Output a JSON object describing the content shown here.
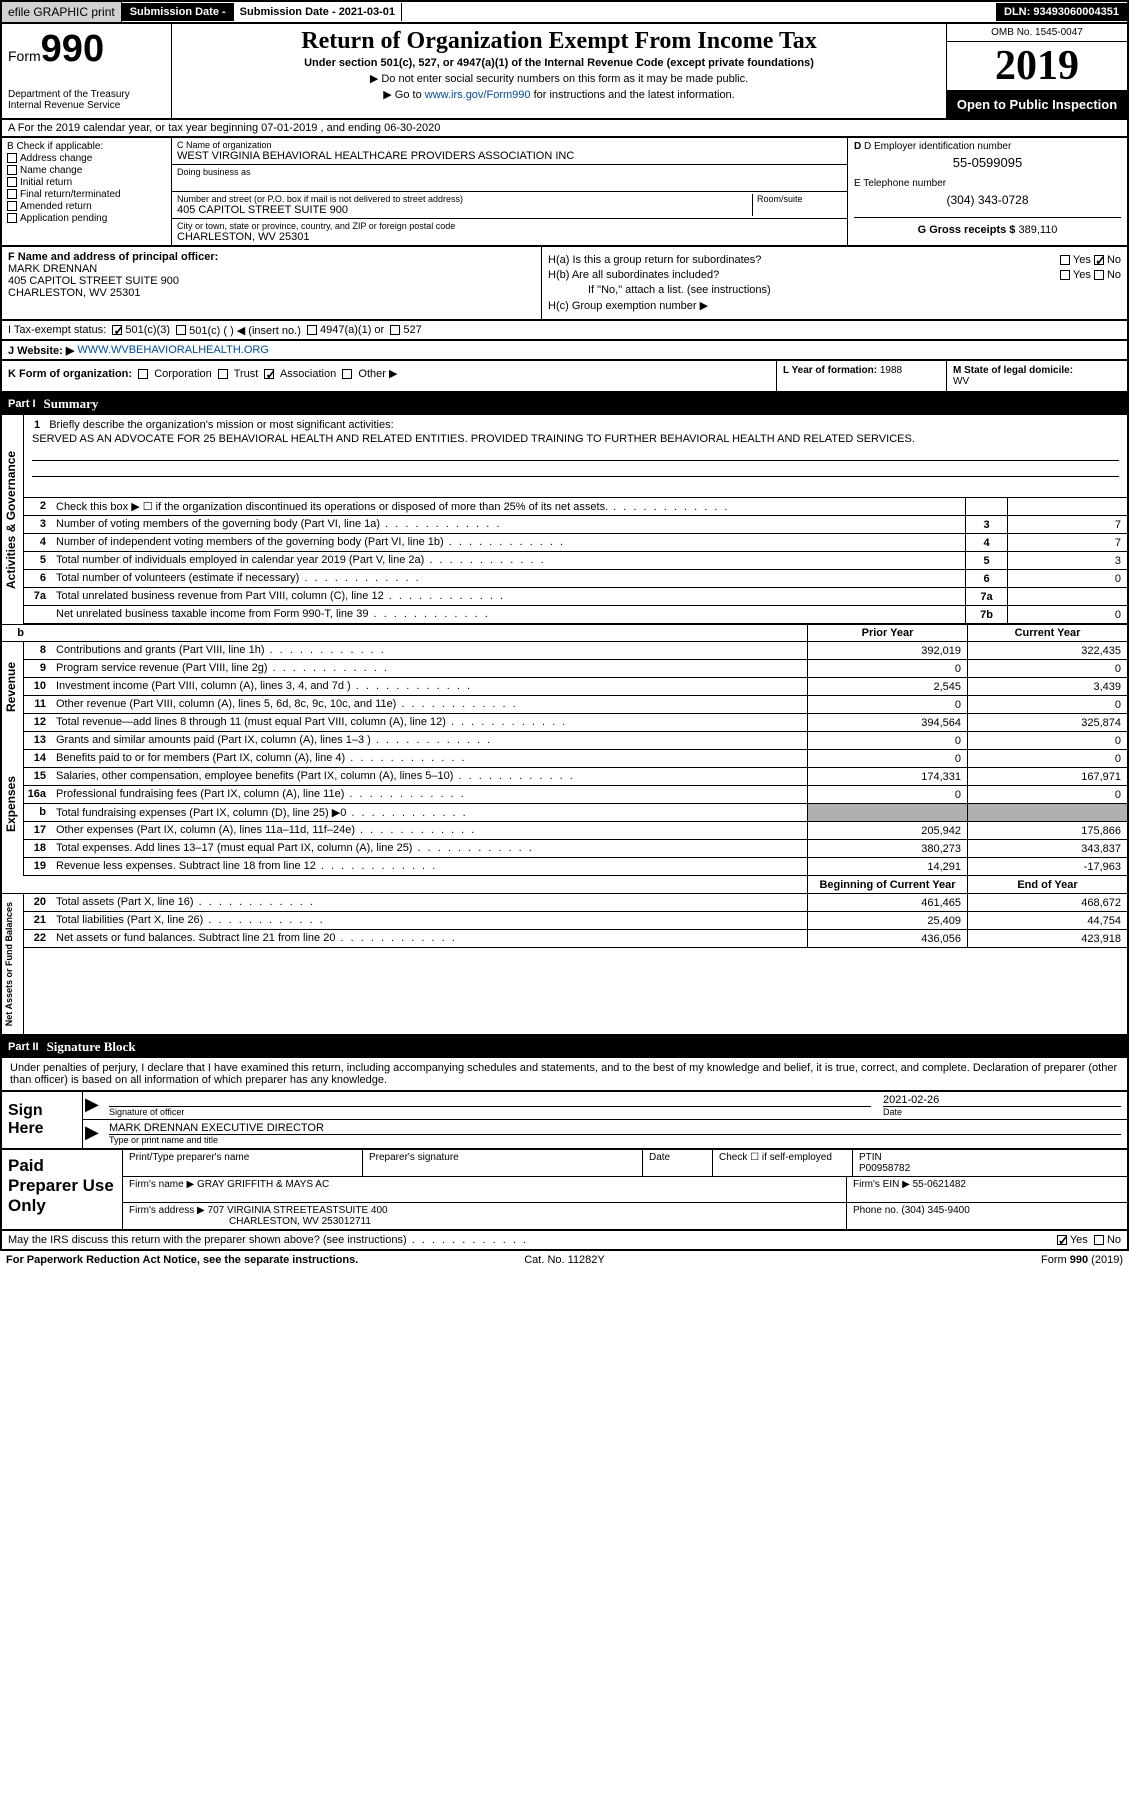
{
  "top_bar": {
    "efile": "efile GRAPHIC print",
    "sub_date_label": "Submission Date - 2021-03-01",
    "dln": "DLN: 93493060004351"
  },
  "header": {
    "form_word": "Form",
    "form_num": "990",
    "dept": "Department of the Treasury\nInternal Revenue Service",
    "title": "Return of Organization Exempt From Income Tax",
    "subtitle": "Under section 501(c), 527, or 4947(a)(1) of the Internal Revenue Code (except private foundations)",
    "instr1": "Do not enter social security numbers on this form as it may be made public.",
    "instr2_pre": "Go to ",
    "instr2_link": "www.irs.gov/Form990",
    "instr2_post": " for instructions and the latest information.",
    "omb": "OMB No. 1545-0047",
    "year": "2019",
    "open": "Open to Public Inspection"
  },
  "line_a": "A For the 2019 calendar year, or tax year beginning 07-01-2019    , and ending 06-30-2020",
  "check_b": {
    "label": "B Check if applicable:",
    "items": [
      "Address change",
      "Name change",
      "Initial return",
      "Final return/terminated",
      "Amended return",
      "Application pending"
    ]
  },
  "block_c": {
    "name_label": "C Name of organization",
    "name": "WEST VIRGINIA BEHAVIORAL HEALTHCARE PROVIDERS ASSOCIATION INC",
    "dba_label": "Doing business as",
    "dba": "",
    "addr_label": "Number and street (or P.O. box if mail is not delivered to street address)",
    "room_label": "Room/suite",
    "addr": "405 CAPITOL STREET SUITE 900",
    "city_label": "City or town, state or province, country, and ZIP or foreign postal code",
    "city": "CHARLESTON, WV  25301"
  },
  "block_d": {
    "label": "D Employer identification number",
    "value": "55-0599095"
  },
  "block_e": {
    "label": "E Telephone number",
    "value": "(304) 343-0728"
  },
  "block_g": {
    "label": "G Gross receipts $",
    "value": "389,110"
  },
  "block_f": {
    "label": "F  Name and address of principal officer:",
    "name": "MARK DRENNAN",
    "addr1": "405 CAPITOL STREET SUITE 900",
    "addr2": "CHARLESTON, WV  25301"
  },
  "block_h": {
    "ha": "H(a)  Is this a group return for subordinates?",
    "hb": "H(b)  Are all subordinates included?",
    "hb_note": "If \"No,\" attach a list. (see instructions)",
    "hc": "H(c)  Group exemption number ▶",
    "yes": "Yes",
    "no": "No"
  },
  "tax_status": {
    "label": "I    Tax-exempt status:",
    "opts": [
      "501(c)(3)",
      "501(c) (   ) ◀ (insert no.)",
      "4947(a)(1) or",
      "527"
    ]
  },
  "website": {
    "label": "J    Website: ▶",
    "value": "WWW.WVBEHAVIORALHEALTH.ORG"
  },
  "block_k": {
    "label": "K Form of organization:",
    "opts": [
      "Corporation",
      "Trust",
      "Association",
      "Other ▶"
    ]
  },
  "block_l": {
    "label": "L Year of formation:",
    "value": "1988"
  },
  "block_m": {
    "label": "M State of legal domicile:",
    "value": "WV"
  },
  "part1": {
    "num": "Part I",
    "title": "Summary"
  },
  "mission": {
    "num": "1",
    "label": "Briefly describe the organization's mission or most significant activities:",
    "text": "SERVED AS AN ADVOCATE FOR 25 BEHAVIORAL HEALTH AND RELATED ENTITIES. PROVIDED TRAINING TO FURTHER BEHAVIORAL HEALTH AND RELATED SERVICES."
  },
  "vtabs": {
    "gov": "Activities & Governance",
    "rev": "Revenue",
    "exp": "Expenses",
    "net": "Net Assets or Fund Balances"
  },
  "gov_rows": [
    {
      "n": "2",
      "t": "Check this box ▶ ☐  if the organization discontinued its operations or disposed of more than 25% of its net assets.",
      "box": "",
      "v": ""
    },
    {
      "n": "3",
      "t": "Number of voting members of the governing body (Part VI, line 1a)",
      "box": "3",
      "v": "7"
    },
    {
      "n": "4",
      "t": "Number of independent voting members of the governing body (Part VI, line 1b)",
      "box": "4",
      "v": "7"
    },
    {
      "n": "5",
      "t": "Total number of individuals employed in calendar year 2019 (Part V, line 2a)",
      "box": "5",
      "v": "3"
    },
    {
      "n": "6",
      "t": "Total number of volunteers (estimate if necessary)",
      "box": "6",
      "v": "0"
    },
    {
      "n": "7a",
      "t": "Total unrelated business revenue from Part VIII, column (C), line 12",
      "box": "7a",
      "v": ""
    },
    {
      "n": "",
      "t": "Net unrelated business taxable income from Form 990-T, line 39",
      "box": "7b",
      "v": "0"
    }
  ],
  "col_headers": {
    "prior": "Prior Year",
    "current": "Current Year"
  },
  "rev_rows": [
    {
      "n": "8",
      "t": "Contributions and grants (Part VIII, line 1h)",
      "p": "392,019",
      "c": "322,435"
    },
    {
      "n": "9",
      "t": "Program service revenue (Part VIII, line 2g)",
      "p": "0",
      "c": "0"
    },
    {
      "n": "10",
      "t": "Investment income (Part VIII, column (A), lines 3, 4, and 7d )",
      "p": "2,545",
      "c": "3,439"
    },
    {
      "n": "11",
      "t": "Other revenue (Part VIII, column (A), lines 5, 6d, 8c, 9c, 10c, and 11e)",
      "p": "0",
      "c": "0"
    },
    {
      "n": "12",
      "t": "Total revenue—add lines 8 through 11 (must equal Part VIII, column (A), line 12)",
      "p": "394,564",
      "c": "325,874"
    }
  ],
  "exp_rows": [
    {
      "n": "13",
      "t": "Grants and similar amounts paid (Part IX, column (A), lines 1–3 )",
      "p": "0",
      "c": "0"
    },
    {
      "n": "14",
      "t": "Benefits paid to or for members (Part IX, column (A), line 4)",
      "p": "0",
      "c": "0"
    },
    {
      "n": "15",
      "t": "Salaries, other compensation, employee benefits (Part IX, column (A), lines 5–10)",
      "p": "174,331",
      "c": "167,971"
    },
    {
      "n": "16a",
      "t": "Professional fundraising fees (Part IX, column (A), line 11e)",
      "p": "0",
      "c": "0"
    },
    {
      "n": "b",
      "t": "Total fundraising expenses (Part IX, column (D), line 25) ▶0",
      "p": "",
      "c": "",
      "grey": true
    },
    {
      "n": "17",
      "t": "Other expenses (Part IX, column (A), lines 11a–11d, 11f–24e)",
      "p": "205,942",
      "c": "175,866"
    },
    {
      "n": "18",
      "t": "Total expenses. Add lines 13–17 (must equal Part IX, column (A), line 25)",
      "p": "380,273",
      "c": "343,837"
    },
    {
      "n": "19",
      "t": "Revenue less expenses. Subtract line 18 from line 12",
      "p": "14,291",
      "c": "-17,963"
    }
  ],
  "net_headers": {
    "prior": "Beginning of Current Year",
    "current": "End of Year"
  },
  "net_rows": [
    {
      "n": "20",
      "t": "Total assets (Part X, line 16)",
      "p": "461,465",
      "c": "468,672"
    },
    {
      "n": "21",
      "t": "Total liabilities (Part X, line 26)",
      "p": "25,409",
      "c": "44,754"
    },
    {
      "n": "22",
      "t": "Net assets or fund balances. Subtract line 21 from line 20",
      "p": "436,056",
      "c": "423,918"
    }
  ],
  "part2": {
    "num": "Part II",
    "title": "Signature Block"
  },
  "sig_text": "Under penalties of perjury, I declare that I have examined this return, including accompanying schedules and statements, and to the best of my knowledge and belief, it is true, correct, and complete. Declaration of preparer (other than officer) is based on all information of which preparer has any knowledge.",
  "sign": {
    "heading": "Sign Here",
    "officer_label": "Signature of officer",
    "date_label": "Date",
    "date": "2021-02-26",
    "name": "MARK DRENNAN  EXECUTIVE DIRECTOR",
    "name_label": "Type or print name and title"
  },
  "prep": {
    "heading": "Paid Preparer Use Only",
    "name_label": "Print/Type preparer's name",
    "sig_label": "Preparer's signature",
    "date_label": "Date",
    "check_label": "Check ☐ if self-employed",
    "ptin_label": "PTIN",
    "ptin": "P00958782",
    "firm_name_label": "Firm's name    ▶",
    "firm_name": "GRAY GRIFFITH & MAYS AC",
    "firm_ein_label": "Firm's EIN ▶",
    "firm_ein": "55-0621482",
    "firm_addr_label": "Firm's address ▶",
    "firm_addr": "707 VIRGINIA STREETEASTSUITE 400",
    "firm_city": "CHARLESTON, WV  253012711",
    "phone_label": "Phone no.",
    "phone": "(304) 345-9400"
  },
  "discuss": "May the IRS discuss this return with the preparer shown above? (see instructions)",
  "footer": {
    "left": "For Paperwork Reduction Act Notice, see the separate instructions.",
    "mid": "Cat. No. 11282Y",
    "right": "Form 990 (2019)"
  },
  "colors": {
    "link": "#004b9b",
    "black": "#000000",
    "grey_btn": "#d0d0d0",
    "grey_cell": "#b0b0b0"
  }
}
